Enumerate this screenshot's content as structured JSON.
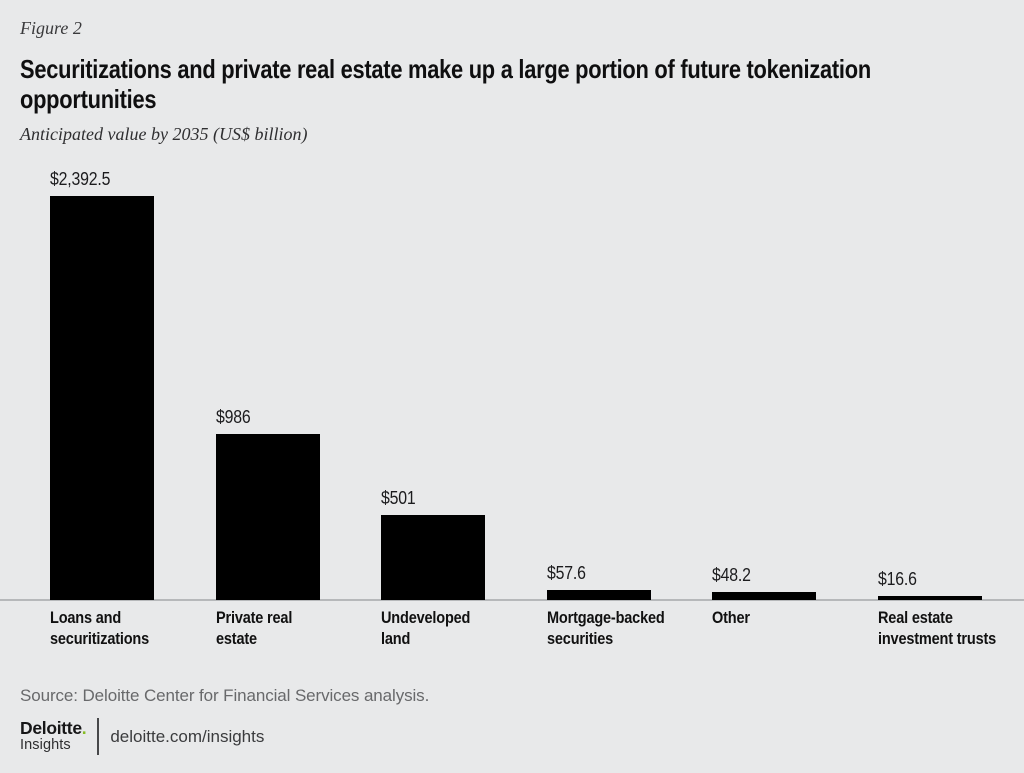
{
  "figure_label": "Figure 2",
  "header": {
    "title": "Securitizations and private real estate make up a large portion of future tokenization\nopportunities",
    "subtitle": "Anticipated value by 2035 (US$ billion)"
  },
  "chart_data": {
    "type": "bar",
    "title": "Securitizations and private real estate make up a large portion of future tokenization opportunities",
    "subtitle": "Anticipated value by 2035 (US$ billion)",
    "unit": "US$ billion",
    "categories": [
      "Loans and securitizations",
      "Private real estate",
      "Undeveloped land",
      "Mortgage-backed securities",
      "Other",
      "Real estate investment trusts"
    ],
    "category_label_lines": [
      [
        "Loans and",
        "securitizations"
      ],
      [
        "Private real",
        "estate"
      ],
      [
        "Undeveloped",
        "land"
      ],
      [
        "Mortgage-backed",
        "securities"
      ],
      [
        "Other"
      ],
      [
        "Real estate",
        "investment trusts"
      ]
    ],
    "values": [
      2392.5,
      986,
      501,
      57.6,
      48.2,
      16.6
    ],
    "value_labels": [
      "$2,392.5",
      "$986",
      "$501",
      "$57.6",
      "$48.2",
      "$16.6"
    ],
    "bar_color": "#000000",
    "xlabel": "",
    "ylabel": "",
    "ylim": [
      0,
      2400
    ],
    "grid": false,
    "legend": "none"
  },
  "footer": {
    "source": "Source: Deloitte Center for Financial Services analysis.",
    "logo": {
      "brand": "Deloitte",
      "brand_dot": ".",
      "insights": "Insights",
      "link": "deloitte.com/insights"
    }
  },
  "colors": {
    "background": "#e8e9ea",
    "bar": "#000000",
    "accent_green": "#86bc25",
    "axis_line": "#b6b8ba",
    "source_text": "#68696b"
  }
}
